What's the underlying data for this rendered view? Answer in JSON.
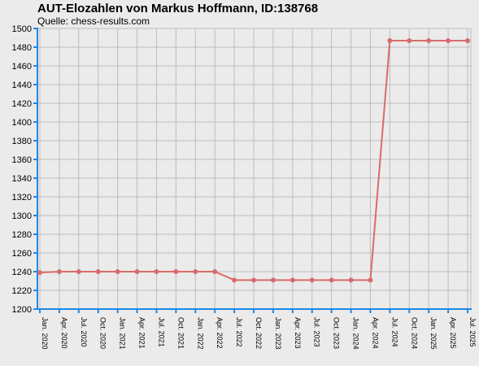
{
  "chart_data": {
    "type": "line",
    "title": "AUT-Elozahlen von Markus Hoffmann, ID:138768",
    "subtitle": "Quelle: chess-results.com",
    "xlabel": "",
    "ylabel": "",
    "ylim": [
      1200,
      1500
    ],
    "yticks": [
      1200,
      1220,
      1240,
      1260,
      1280,
      1300,
      1320,
      1340,
      1360,
      1380,
      1400,
      1420,
      1440,
      1460,
      1480,
      1500
    ],
    "grid": true,
    "categories": [
      "Jan. 2020",
      "Apr. 2020",
      "Jul. 2020",
      "Oct. 2020",
      "Jan. 2021",
      "Apr. 2021",
      "Jul. 2021",
      "Oct. 2021",
      "Jan. 2022",
      "Apr. 2022",
      "Jul. 2022",
      "Oct. 2022",
      "Jan. 2023",
      "Apr. 2023",
      "Jul. 2023",
      "Oct. 2023",
      "Jan. 2024",
      "Apr. 2024",
      "Jul. 2024",
      "Oct. 2024",
      "Jan. 2025",
      "Apr. 2025",
      "Jul. 2025"
    ],
    "series": [
      {
        "values": [
          1239,
          1240,
          1240,
          1240,
          1240,
          1240,
          1240,
          1240,
          1240,
          1240,
          1231,
          1231,
          1231,
          1231,
          1231,
          1231,
          1231,
          1231,
          1487,
          1487,
          1487,
          1487,
          1487
        ],
        "color": "#d96b6b"
      }
    ],
    "colors": {
      "axis": "#1e88e5",
      "grid": "#bdbdbd",
      "plot_background": "#ebebeb"
    }
  }
}
